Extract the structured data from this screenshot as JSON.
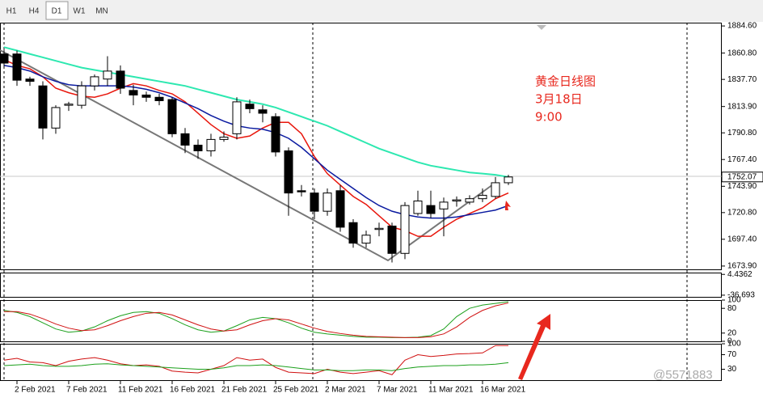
{
  "ui": {
    "buttons": [
      "H1",
      "H4",
      "D1",
      "W1",
      "MN"
    ],
    "active": "D1",
    "watermark": "@5571883"
  },
  "annotation": [
    "黄金日线图",
    "3月18日",
    "9:00"
  ],
  "chart_data": [
    {
      "type": "candlestick",
      "categories": [
        null,
        "2 Feb 2021",
        null,
        null,
        null,
        "7 Feb 2021",
        null,
        null,
        null,
        "11 Feb 2021",
        null,
        null,
        null,
        "16 Feb 2021",
        null,
        null,
        null,
        "21 Feb 2021",
        null,
        null,
        null,
        "25 Feb 2021",
        null,
        null,
        null,
        "2 Mar 2021",
        null,
        null,
        null,
        "7 Mar 2021",
        null,
        null,
        null,
        "11 Mar 2021",
        null,
        null,
        null,
        "16 Mar 2021",
        null,
        null
      ],
      "open": [
        1860,
        1860,
        1838,
        1832,
        1795,
        1815,
        1815,
        1832,
        1838,
        1845,
        1828,
        1824,
        1822,
        1820,
        1790,
        1780,
        1775,
        1785,
        1790,
        1816,
        1811,
        1805,
        1775,
        1740,
        1738,
        1722,
        1740,
        1712,
        1694,
        1706,
        1709,
        1685,
        1720,
        1727,
        1724,
        1731,
        1730,
        1733,
        1735,
        1747
      ],
      "high": [
        1864,
        1863,
        1840,
        1836,
        1815,
        1818,
        1836,
        1842,
        1858,
        1850,
        1833,
        1827,
        1825,
        1822,
        1795,
        1785,
        1790,
        1792,
        1822,
        1820,
        1815,
        1808,
        1778,
        1745,
        1742,
        1742,
        1745,
        1715,
        1705,
        1712,
        1712,
        1730,
        1740,
        1740,
        1734,
        1735,
        1736,
        1742,
        1752,
        1754
      ],
      "low": [
        1848,
        1832,
        1832,
        1785,
        1790,
        1810,
        1812,
        1828,
        1832,
        1825,
        1815,
        1818,
        1815,
        1787,
        1773,
        1768,
        1770,
        1783,
        1785,
        1808,
        1800,
        1770,
        1718,
        1735,
        1715,
        1718,
        1704,
        1690,
        1690,
        1700,
        1677,
        1680,
        1718,
        1716,
        1700,
        1726,
        1728,
        1730,
        1733,
        1745
      ],
      "close": [
        1852,
        1837,
        1836,
        1795,
        1813,
        1816,
        1832,
        1840,
        1845,
        1830,
        1824,
        1822,
        1819,
        1790,
        1780,
        1775,
        1785,
        1787,
        1818,
        1812,
        1808,
        1774,
        1738,
        1739,
        1722,
        1738,
        1708,
        1694,
        1701,
        1707,
        1685,
        1727,
        1731,
        1720,
        1730,
        1732,
        1733,
        1736,
        1747,
        1752.07
      ],
      "up_color": "#ffffff",
      "down_color": "#000000",
      "series": [
        {
          "color": "#e8160c",
          "values": [
            1855,
            1850,
            1847,
            1840,
            1830,
            1826,
            1823,
            1822,
            1825,
            1830,
            1834,
            1832,
            1828,
            1825,
            1818,
            1808,
            1798,
            1790,
            1786,
            1788,
            1795,
            1800,
            1800,
            1790,
            1770,
            1755,
            1745,
            1735,
            1728,
            1718,
            1708,
            1705,
            1700,
            1700,
            1708,
            1715,
            1720,
            1725,
            1733,
            1738
          ]
        },
        {
          "color": "#0a1aa0",
          "values": [
            1850,
            1848,
            1845,
            1840,
            1836,
            1833,
            1832,
            1832,
            1832,
            1832,
            1831,
            1829,
            1826,
            1822,
            1817,
            1812,
            1806,
            1801,
            1797,
            1795,
            1794,
            1791,
            1786,
            1778,
            1768,
            1758,
            1750,
            1742,
            1734,
            1727,
            1722,
            1719,
            1717,
            1716,
            1716,
            1717,
            1719,
            1721,
            1723,
            1727
          ]
        },
        {
          "color": "#2de8b0",
          "values": [
            1866,
            1863,
            1860,
            1857,
            1854,
            1851,
            1848,
            1846,
            1844,
            1842,
            1840,
            1838,
            1836,
            1834,
            1832,
            1829,
            1826,
            1823,
            1820,
            1818,
            1816,
            1813,
            1809,
            1805,
            1801,
            1797,
            1792,
            1787,
            1782,
            1777,
            1773,
            1769,
            1765,
            1762,
            1760,
            1758,
            1756,
            1755,
            1754,
            1752
          ]
        }
      ],
      "ylim": [
        1671,
        1887.5
      ],
      "yticks": [
        {
          "value": 1884.6,
          "label": "1884.60"
        },
        {
          "value": 1860.8,
          "label": "1860.80"
        },
        {
          "value": 1837.7,
          "label": "1837.70"
        },
        {
          "value": 1813.9,
          "label": "1813.90"
        },
        {
          "value": 1790.8,
          "label": "1790.80"
        },
        {
          "value": 1767.4,
          "label": "1767.40"
        },
        {
          "value": 1743.9,
          "label": "1743.90"
        },
        {
          "value": 1720.8,
          "label": "1720.80"
        },
        {
          "value": 1697.4,
          "label": "1697.40"
        },
        {
          "value": 1673.9,
          "label": "1673.90"
        }
      ]
    },
    {
      "type": "line",
      "series": [],
      "ylim": [
        -40,
        8
      ],
      "yticks": [
        4.4362,
        -36.693
      ]
    },
    {
      "type": "line",
      "series": [
        {
          "color": "#1ca01c",
          "values": [
            75,
            70,
            60,
            45,
            30,
            22,
            25,
            35,
            50,
            62,
            70,
            72,
            68,
            55,
            40,
            28,
            22,
            25,
            38,
            52,
            58,
            55,
            45,
            32,
            22,
            18,
            15,
            12,
            10,
            10,
            9,
            9,
            10,
            14,
            30,
            60,
            80,
            88,
            92,
            96
          ]
        },
        {
          "color": "#d01010",
          "values": [
            72,
            72,
            66,
            55,
            42,
            32,
            26,
            28,
            38,
            50,
            60,
            68,
            70,
            64,
            52,
            40,
            30,
            25,
            28,
            40,
            50,
            55,
            52,
            42,
            32,
            24,
            19,
            15,
            12,
            11,
            10,
            9,
            9,
            11,
            18,
            35,
            58,
            75,
            86,
            93
          ]
        }
      ],
      "ylim": [
        0,
        100
      ],
      "yticks": [
        100,
        80,
        20,
        0
      ]
    },
    {
      "type": "line",
      "series": [
        {
          "color": "#d01010",
          "values": [
            55,
            60,
            50,
            48,
            40,
            52,
            58,
            62,
            55,
            45,
            40,
            42,
            38,
            25,
            22,
            20,
            30,
            40,
            62,
            55,
            58,
            35,
            22,
            20,
            18,
            30,
            22,
            18,
            22,
            26,
            15,
            55,
            70,
            65,
            68,
            72,
            73,
            75,
            95,
            95
          ]
        },
        {
          "color": "#1ca01c",
          "values": [
            40,
            42,
            44,
            40,
            38,
            38,
            40,
            44,
            45,
            42,
            40,
            38,
            36,
            34,
            32,
            30,
            30,
            34,
            40,
            40,
            42,
            40,
            36,
            32,
            28,
            28,
            26,
            26,
            28,
            28,
            26,
            32,
            36,
            38,
            40,
            40,
            42,
            42,
            44,
            48
          ]
        }
      ],
      "ylim": [
        0,
        100
      ],
      "yticks": [
        100,
        70,
        30
      ]
    }
  ]
}
